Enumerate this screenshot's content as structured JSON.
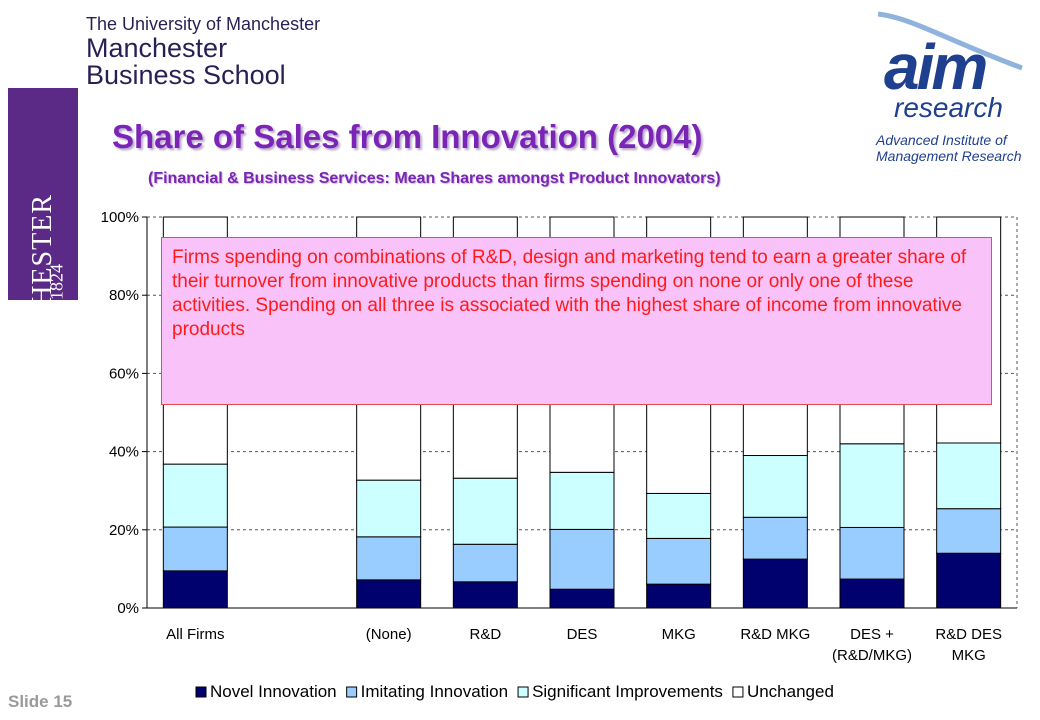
{
  "header": {
    "university_line": "The University of Manchester",
    "school_line_1": "Manchester",
    "school_line_2": "Business School",
    "crest_text": "MANCHESTER",
    "crest_year": "1824",
    "partner_logo_word": "aim",
    "partner_logo_sub": "research",
    "partner_full_1": "Advanced Institute of",
    "partner_full_2": "Management Research"
  },
  "slide": {
    "number": "Slide 15"
  },
  "callout": {
    "text": "Firms spending on combinations of R&D, design and marketing tend to earn a greater share of their turnover from innovative products than firms spending on none or only one of these activities. Spending on all three is associated with the highest share of income from innovative products"
  },
  "colors": {
    "title": "#7a25b5",
    "novel": "#00006e",
    "imitating": "#99ccff",
    "significant": "#ccffff",
    "unchanged": "#ffffff",
    "callout_bg": "#f9c3f9",
    "callout_text": "#ff1a1a"
  },
  "chart_data": {
    "type": "bar",
    "stacked": true,
    "title": "Share of Sales from Innovation (2004)",
    "subtitle": "(Financial & Business Services: Mean Shares amongst Product Innovators)",
    "categories": [
      "All Firms",
      "",
      "(None)",
      "R&D",
      "DES",
      "MKG",
      "R&D MKG",
      "DES + (R&D/MKG)",
      "R&D DES MKG"
    ],
    "category_lines": [
      [
        "All Firms"
      ],
      [],
      [
        "(None)"
      ],
      [
        "R&D"
      ],
      [
        "DES"
      ],
      [
        "MKG"
      ],
      [
        "R&D MKG"
      ],
      [
        "DES +",
        "(R&D/MKG)"
      ],
      [
        "R&D DES",
        "MKG"
      ]
    ],
    "series": [
      {
        "name": "Novel Innovation",
        "values": [
          9.5,
          0,
          7.2,
          6.7,
          4.8,
          6.1,
          12.5,
          7.4,
          14.0
        ]
      },
      {
        "name": "Imitating Innovation",
        "values": [
          11.2,
          0,
          11.0,
          9.6,
          15.3,
          11.7,
          10.7,
          13.2,
          11.4
        ]
      },
      {
        "name": "Significant Improvements",
        "values": [
          16.1,
          0,
          14.5,
          16.9,
          14.6,
          11.5,
          15.8,
          21.4,
          16.8
        ]
      },
      {
        "name": "Unchanged",
        "values": [
          63.2,
          0,
          67.3,
          66.8,
          65.3,
          70.7,
          61.0,
          58.0,
          57.8
        ]
      }
    ],
    "yticks": [
      "0%",
      "20%",
      "40%",
      "60%",
      "80%",
      "100%"
    ],
    "ylim": [
      0,
      100
    ],
    "grid": true,
    "legend_position": "bottom"
  }
}
